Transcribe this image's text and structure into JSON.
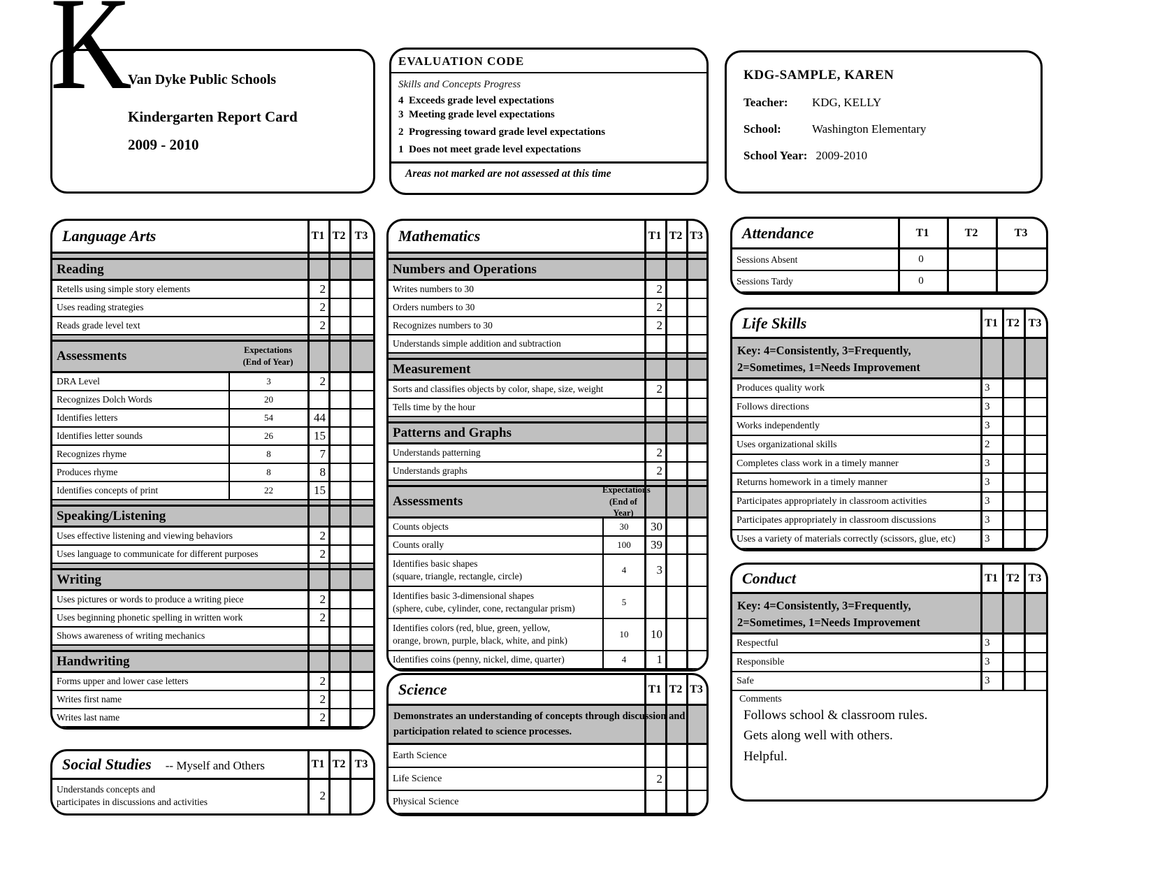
{
  "page": {
    "logo_letter": "K",
    "district": "Van Dyke Public Schools",
    "card_title": "Kindergarten Report Card",
    "school_years": "2009 - 2010"
  },
  "evaluation": {
    "title": "EVALUATION CODE",
    "subtitle": "Skills and Concepts Progress",
    "codes": [
      {
        "num": "4",
        "text": "Exceeds grade level expectations"
      },
      {
        "num": "3",
        "text": "Meeting grade level expectations"
      },
      {
        "num": "2",
        "text": "Progressing toward grade level expectations"
      },
      {
        "num": "1",
        "text": "Does not meet grade level expectations"
      }
    ],
    "footnote": "Areas not marked are not assessed at this time"
  },
  "student": {
    "name": "KDG-SAMPLE, KAREN",
    "teacher_label": "Teacher:",
    "teacher_value": "KDG, KELLY",
    "school_label": "School:",
    "school_value": "Washington Elementary",
    "year_label": "School Year:",
    "year_value": "2009-2010"
  },
  "terms": [
    "T1",
    "T2",
    "T3"
  ],
  "colors": {
    "section_gray": "#c0c0c0",
    "line_black": "#000000"
  },
  "tables": {
    "language_arts": {
      "title": "Language Arts",
      "rows": [
        {
          "type": "section",
          "label": "Reading"
        },
        {
          "type": "item",
          "label": "Retells using simple story elements",
          "t1": "2",
          "t2": "",
          "t3": ""
        },
        {
          "type": "item",
          "label": "Uses reading strategies",
          "t1": "2",
          "t2": "",
          "t3": ""
        },
        {
          "type": "item",
          "label": "Reads grade level text",
          "t1": "2",
          "t2": "",
          "t3": ""
        },
        {
          "type": "section_exp",
          "label": "Assessments",
          "exp1": "Expectations",
          "exp2": "(End of Year)"
        },
        {
          "type": "item_exp",
          "label": "DRA Level",
          "exp": "3",
          "t1": "2",
          "t2": "",
          "t3": ""
        },
        {
          "type": "item_exp",
          "label": "Recognizes Dolch Words",
          "exp": "20",
          "t1": "",
          "t2": "",
          "t3": ""
        },
        {
          "type": "item_exp",
          "label": "Identifies letters",
          "exp": "54",
          "t1": "44",
          "t2": "",
          "t3": ""
        },
        {
          "type": "item_exp",
          "label": "Identifies letter sounds",
          "exp": "26",
          "t1": "15",
          "t2": "",
          "t3": ""
        },
        {
          "type": "item_exp",
          "label": "Recognizes rhyme",
          "exp": "8",
          "t1": "7",
          "t2": "",
          "t3": ""
        },
        {
          "type": "item_exp",
          "label": "Produces rhyme",
          "exp": "8",
          "t1": "8",
          "t2": "",
          "t3": ""
        },
        {
          "type": "item_exp",
          "label": "Identifies concepts of print",
          "exp": "22",
          "t1": "15",
          "t2": "",
          "t3": ""
        },
        {
          "type": "section",
          "label": "Speaking/Listening"
        },
        {
          "type": "item",
          "label": "Uses effective listening and viewing behaviors",
          "t1": "2",
          "t2": "",
          "t3": ""
        },
        {
          "type": "item",
          "label": "Uses language to communicate for different purposes",
          "t1": "2",
          "t2": "",
          "t3": ""
        },
        {
          "type": "section",
          "label": "Writing"
        },
        {
          "type": "item",
          "label": "Uses pictures or words to produce a writing piece",
          "t1": "2",
          "t2": "",
          "t3": ""
        },
        {
          "type": "item",
          "label": "Uses beginning phonetic spelling in written work",
          "t1": "2",
          "t2": "",
          "t3": ""
        },
        {
          "type": "item",
          "label": "Shows awareness of writing mechanics",
          "t1": "",
          "t2": "",
          "t3": ""
        },
        {
          "type": "section",
          "label": "Handwriting"
        },
        {
          "type": "item",
          "label": "Forms upper and lower case letters",
          "t1": "2",
          "t2": "",
          "t3": ""
        },
        {
          "type": "item",
          "label": "Writes first name",
          "t1": "2",
          "t2": "",
          "t3": ""
        },
        {
          "type": "item",
          "label": "Writes last name",
          "t1": "2",
          "t2": "",
          "t3": ""
        }
      ]
    },
    "social_studies": {
      "title": "Social Studies",
      "subtitle": "-- Myself and Others",
      "rows": [
        {
          "type": "item2",
          "label": "Understands concepts and",
          "label2": "participates in discussions and activities",
          "t1": "2",
          "t2": "",
          "t3": ""
        }
      ]
    },
    "mathematics": {
      "title": "Mathematics",
      "rows": [
        {
          "type": "section",
          "label": "Numbers and Operations"
        },
        {
          "type": "item",
          "label": "Writes numbers to 30",
          "t1": "2",
          "t2": "",
          "t3": ""
        },
        {
          "type": "item",
          "label": "Orders numbers to 30",
          "t1": "2",
          "t2": "",
          "t3": ""
        },
        {
          "type": "item",
          "label": "Recognizes numbers to 30",
          "t1": "2",
          "t2": "",
          "t3": ""
        },
        {
          "type": "item",
          "label": "Understands simple addition and subtraction",
          "t1": "",
          "t2": "",
          "t3": ""
        },
        {
          "type": "section",
          "label": "Measurement"
        },
        {
          "type": "item",
          "label": "Sorts and classifies objects by color, shape, size, weight",
          "t1": "2",
          "t2": "",
          "t3": ""
        },
        {
          "type": "item",
          "label": "Tells time by the hour",
          "t1": "",
          "t2": "",
          "t3": ""
        },
        {
          "type": "section",
          "label": "Patterns and Graphs"
        },
        {
          "type": "item",
          "label": "Understands patterning",
          "t1": "2",
          "t2": "",
          "t3": ""
        },
        {
          "type": "item",
          "label": "Understands graphs",
          "t1": "2",
          "t2": "",
          "t3": ""
        },
        {
          "type": "section_exp",
          "label": "Assessments",
          "exp1": "Expectations",
          "exp2": "(End of Year)"
        },
        {
          "type": "item_exp",
          "label": "Counts objects",
          "exp": "30",
          "t1": "30",
          "t2": "",
          "t3": ""
        },
        {
          "type": "item_exp",
          "label": "Counts orally",
          "exp": "100",
          "t1": "39",
          "t2": "",
          "t3": ""
        },
        {
          "type": "item_exp2",
          "label": "Identifies basic shapes",
          "label2": "(square, triangle, rectangle, circle)",
          "exp": "4",
          "t1": "3",
          "t2": "",
          "t3": ""
        },
        {
          "type": "item_exp2",
          "label": "Identifies basic 3-dimensional shapes",
          "label2": "(sphere, cube, cylinder, cone, rectangular prism)",
          "exp": "5",
          "t1": "",
          "t2": "",
          "t3": ""
        },
        {
          "type": "item_exp2",
          "label": "Identifies colors (red, blue, green, yellow,",
          "label2": "orange, brown, purple, black, white, and pink)",
          "exp": "10",
          "t1": "10",
          "t2": "",
          "t3": ""
        },
        {
          "type": "item_exp",
          "label": "Identifies coins (penny, nickel, dime, quarter)",
          "exp": "4",
          "t1": "1",
          "t2": "",
          "t3": ""
        }
      ]
    },
    "science": {
      "title": "Science",
      "rows": [
        {
          "type": "banner2",
          "label": "Demonstrates an understanding of concepts through discussion and",
          "label2": "participation related to science processes."
        },
        {
          "type": "item",
          "label": "Earth Science",
          "t1": "",
          "t2": "",
          "t3": ""
        },
        {
          "type": "item",
          "label": "Life Science",
          "t1": "2",
          "t2": "",
          "t3": ""
        },
        {
          "type": "item",
          "label": "Physical Science",
          "t1": "",
          "t2": "",
          "t3": ""
        }
      ]
    },
    "attendance": {
      "title": "Attendance",
      "rows": [
        {
          "type": "item",
          "label": "Sessions Absent",
          "t1": "0",
          "t2": "",
          "t3": ""
        },
        {
          "type": "item",
          "label": "Sessions Tardy",
          "t1": "0",
          "t2": "",
          "t3": ""
        }
      ]
    },
    "life_skills": {
      "title": "Life Skills",
      "rows": [
        {
          "type": "banner2",
          "label": "Key: 4=Consistently, 3=Frequently,",
          "label2": "2=Sometimes, 1=Needs Improvement"
        },
        {
          "type": "item",
          "label": "Produces quality work",
          "t1": "3",
          "t2": "",
          "t3": ""
        },
        {
          "type": "item",
          "label": "Follows directions",
          "t1": "3",
          "t2": "",
          "t3": ""
        },
        {
          "type": "item",
          "label": "Works independently",
          "t1": "3",
          "t2": "",
          "t3": ""
        },
        {
          "type": "item",
          "label": "Uses organizational skills",
          "t1": "2",
          "t2": "",
          "t3": ""
        },
        {
          "type": "item",
          "label": "Completes class work in a timely manner",
          "t1": "3",
          "t2": "",
          "t3": ""
        },
        {
          "type": "item",
          "label": "Returns homework in a timely manner",
          "t1": "3",
          "t2": "",
          "t3": ""
        },
        {
          "type": "item",
          "label": "Participates appropriately in classroom activities",
          "t1": "3",
          "t2": "",
          "t3": ""
        },
        {
          "type": "item",
          "label": "Participates appropriately in classroom discussions",
          "t1": "3",
          "t2": "",
          "t3": ""
        },
        {
          "type": "item",
          "label": "Uses a variety of materials correctly (scissors, glue, etc)",
          "t1": "3",
          "t2": "",
          "t3": ""
        }
      ]
    },
    "conduct": {
      "title": "Conduct",
      "rows": [
        {
          "type": "banner2",
          "label": "Key: 4=Consistently, 3=Frequently,",
          "label2": "2=Sometimes, 1=Needs Improvement"
        },
        {
          "type": "item",
          "label": "Respectful",
          "t1": "3",
          "t2": "",
          "t3": ""
        },
        {
          "type": "item",
          "label": "Responsible",
          "t1": "3",
          "t2": "",
          "t3": ""
        },
        {
          "type": "item",
          "label": "Safe",
          "t1": "3",
          "t2": "",
          "t3": ""
        }
      ],
      "comments_label": "Comments",
      "comments": [
        "Follows school & classroom rules.",
        "Gets along well with others.",
        "Helpful."
      ]
    }
  }
}
